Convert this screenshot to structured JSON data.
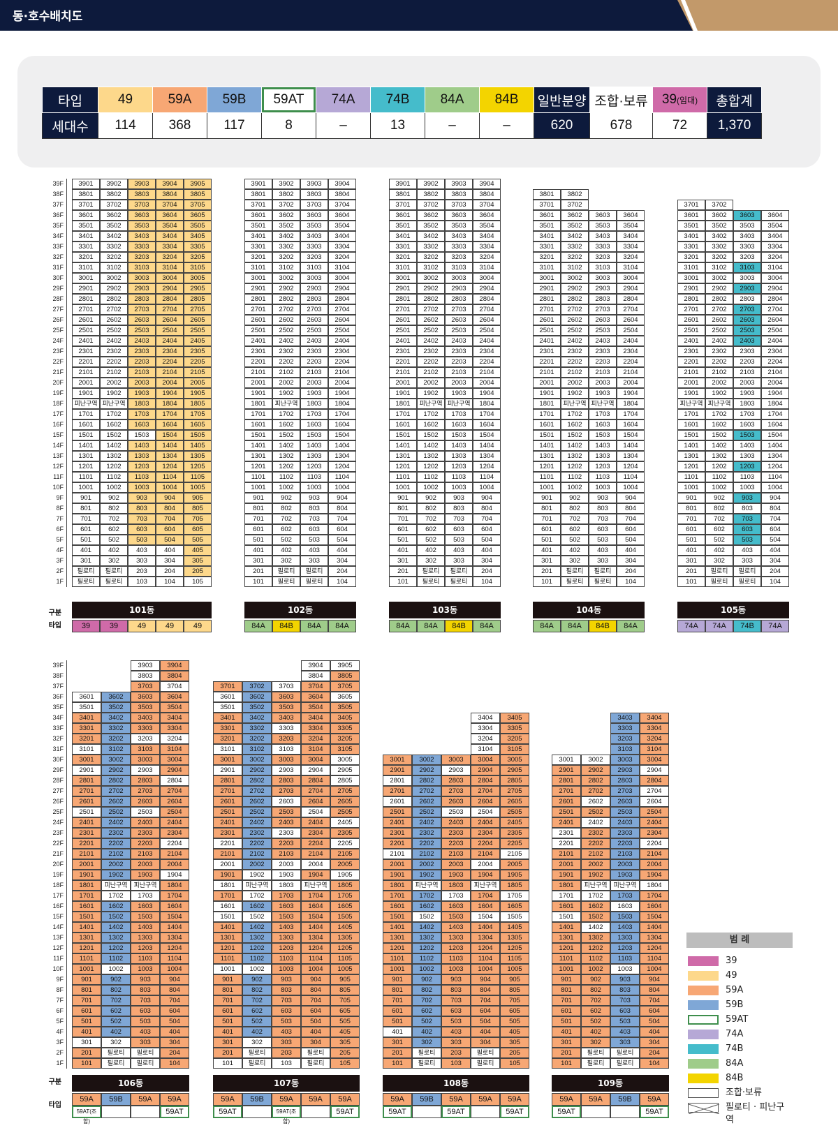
{
  "header": {
    "title": "동·호수배치도"
  },
  "summary": {
    "type_label": "타입",
    "count_label": "세대수",
    "columns": [
      {
        "name": "49",
        "count": "114",
        "color": "#fdd88b"
      },
      {
        "name": "59A",
        "count": "368",
        "color": "#f7a774"
      },
      {
        "name": "59B",
        "count": "117",
        "color": "#7fa7d6"
      },
      {
        "name": "59AT",
        "count": "8",
        "color": "#ffffff"
      },
      {
        "name": "74A",
        "count": "–",
        "color": "#b6a8d6"
      },
      {
        "name": "74B",
        "count": "13",
        "color": "#45bccb"
      },
      {
        "name": "84A",
        "count": "–",
        "color": "#9fcc8a"
      },
      {
        "name": "84B",
        "count": "–",
        "color": "#f3d400"
      },
      {
        "name": "일반분양",
        "count": "620",
        "color": "#0d1a3c"
      },
      {
        "name": "조합·보류",
        "count": "678",
        "color": "#ffffff"
      },
      {
        "name": "39",
        "name_suffix": "(임대)",
        "count": "72",
        "color": "#cf6aa8"
      },
      {
        "name": "총합계",
        "count": "1,370",
        "color": "#0d1a3c"
      }
    ]
  },
  "labels": {
    "gubun": "구분",
    "type": "타입",
    "piloti": "필로티",
    "refuge": "피난구역"
  },
  "buildings_row1": [
    {
      "name": "101동",
      "types": [
        "39",
        "39",
        "49",
        "49",
        "49"
      ]
    },
    {
      "name": "102동",
      "types": [
        "84A",
        "84B",
        "84A",
        "84A"
      ]
    },
    {
      "name": "103동",
      "types": [
        "84A",
        "84A",
        "84B",
        "84A"
      ]
    },
    {
      "name": "104동",
      "types": [
        "84A",
        "84A",
        "84B",
        "84A"
      ]
    },
    {
      "name": "105동",
      "types": [
        "74A",
        "74A",
        "74B",
        "74A"
      ]
    }
  ],
  "buildings_row2": [
    {
      "name": "106동",
      "types": [
        "59A",
        "59B",
        "59A",
        "59A"
      ],
      "at": [
        "59AT(조합)",
        "",
        "",
        "59AT"
      ]
    },
    {
      "name": "107동",
      "types": [
        "59A",
        "59B",
        "59A",
        "59A",
        "59A"
      ],
      "at": [
        "59AT",
        "",
        "59AT(조합)",
        "",
        "59AT"
      ]
    },
    {
      "name": "108동",
      "types": [
        "59A",
        "59B",
        "59A",
        "59A",
        "59A"
      ],
      "at": [
        "59AT",
        "",
        "59AT",
        "",
        "59AT"
      ]
    },
    {
      "name": "109동",
      "types": [
        "59A",
        "59A",
        "59B",
        "59A"
      ],
      "at": [
        "59AT",
        "",
        "",
        "59AT"
      ]
    }
  ],
  "legend": {
    "title": "범 례",
    "items": [
      {
        "label": "39",
        "color": "#cf6aa8"
      },
      {
        "label": "49",
        "color": "#fdd88b"
      },
      {
        "label": "59A",
        "color": "#f7a774"
      },
      {
        "label": "59B",
        "color": "#7fa7d6"
      },
      {
        "label": "59AT",
        "color": "#ffffff"
      },
      {
        "label": "74A",
        "color": "#b6a8d6"
      },
      {
        "label": "74B",
        "color": "#45bccb"
      },
      {
        "label": "84A",
        "color": "#9fcc8a"
      },
      {
        "label": "84B",
        "color": "#f3d400"
      },
      {
        "label": "조합·보류",
        "color": "#ffffff"
      },
      {
        "label": "필로티 · 피난구역",
        "color": "#ffffff"
      }
    ]
  }
}
